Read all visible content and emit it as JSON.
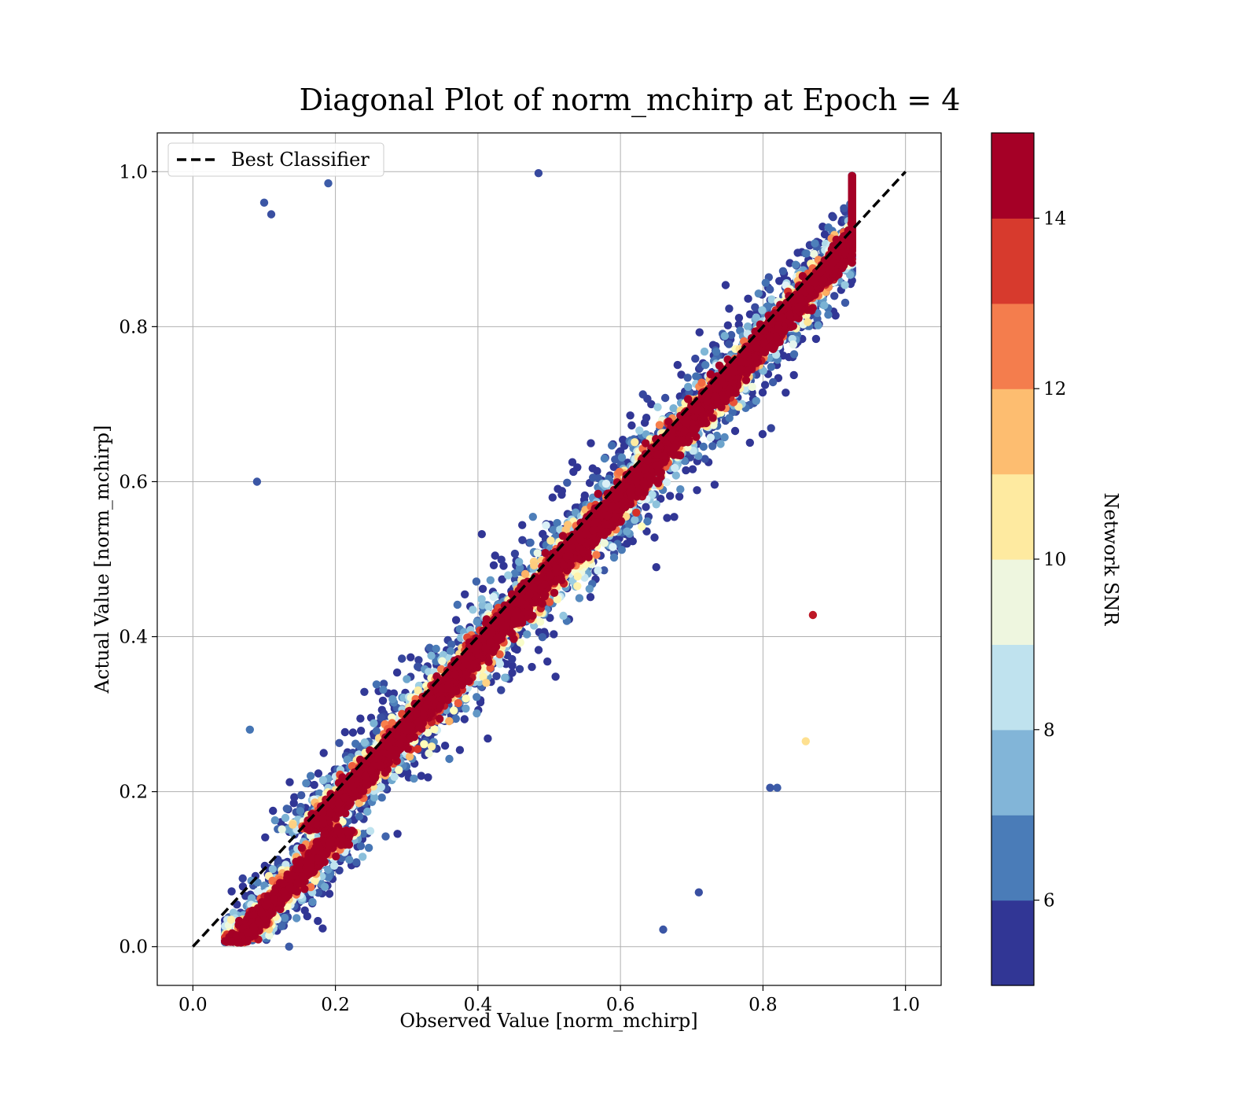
{
  "chart_data": {
    "type": "scatter",
    "title": "Diagonal Plot of norm_mchirp at Epoch = 4",
    "xlabel": "Observed Value [norm_mchirp]",
    "ylabel": "Actual Value [norm_mchirp]",
    "xlim": [
      -0.05,
      1.05
    ],
    "ylim": [
      -0.05,
      1.05
    ],
    "x_ticks": [
      0.0,
      0.2,
      0.4,
      0.6,
      0.8,
      1.0
    ],
    "x_tick_labels": [
      "0.0",
      "0.2",
      "0.4",
      "0.6",
      "0.8",
      "1.0"
    ],
    "y_ticks": [
      0.0,
      0.2,
      0.4,
      0.6,
      0.8,
      1.0
    ],
    "y_tick_labels": [
      "0.0",
      "0.2",
      "0.4",
      "0.6",
      "0.8",
      "1.0"
    ],
    "grid": true,
    "legend": {
      "placement": "upper-left",
      "entries": [
        "Best Classifier"
      ]
    },
    "reference_line": {
      "label": "Best Classifier",
      "x": [
        0.0,
        1.0
      ],
      "y": [
        0.0,
        1.0
      ],
      "style": "dashed",
      "color": "#000000"
    },
    "points_sample": [
      {
        "x": 0.1,
        "y": 0.96,
        "snr": 5.5
      },
      {
        "x": 0.11,
        "y": 0.945,
        "snr": 5.4
      },
      {
        "x": 0.19,
        "y": 0.985,
        "snr": 5.6
      },
      {
        "x": 0.485,
        "y": 0.998,
        "snr": 5.3
      },
      {
        "x": 0.09,
        "y": 0.6,
        "snr": 5.5
      },
      {
        "x": 0.08,
        "y": 0.28,
        "snr": 6.0
      },
      {
        "x": 0.87,
        "y": 0.428,
        "snr": 14.5
      },
      {
        "x": 0.86,
        "y": 0.265,
        "snr": 11.0
      },
      {
        "x": 0.81,
        "y": 0.205,
        "snr": 5.5
      },
      {
        "x": 0.82,
        "y": 0.205,
        "snr": 5.6
      },
      {
        "x": 0.66,
        "y": 0.022,
        "snr": 5.5
      },
      {
        "x": 0.71,
        "y": 0.07,
        "snr": 5.4
      },
      {
        "x": 0.135,
        "y": 0.0,
        "snr": 5.6
      }
    ],
    "colorbar": {
      "label": "Network SNR",
      "min": 5,
      "max": 15,
      "ticks": [
        6,
        8,
        10,
        12,
        14
      ],
      "tick_labels": [
        "6",
        "8",
        "10",
        "12",
        "14"
      ],
      "colors": [
        "#313695",
        "#4575b4",
        "#74add1",
        "#abd9e9",
        "#e0f3f8",
        "#ffffbf",
        "#fee090",
        "#fdae61",
        "#f46d43",
        "#d73027",
        "#a50026"
      ],
      "band_colors": [
        "#313695",
        "#4a7cb8",
        "#82b5d8",
        "#bfe2ee",
        "#eef6df",
        "#feeaa0",
        "#fdbd70",
        "#f47d4d",
        "#d73a2d",
        "#a50026"
      ]
    }
  }
}
